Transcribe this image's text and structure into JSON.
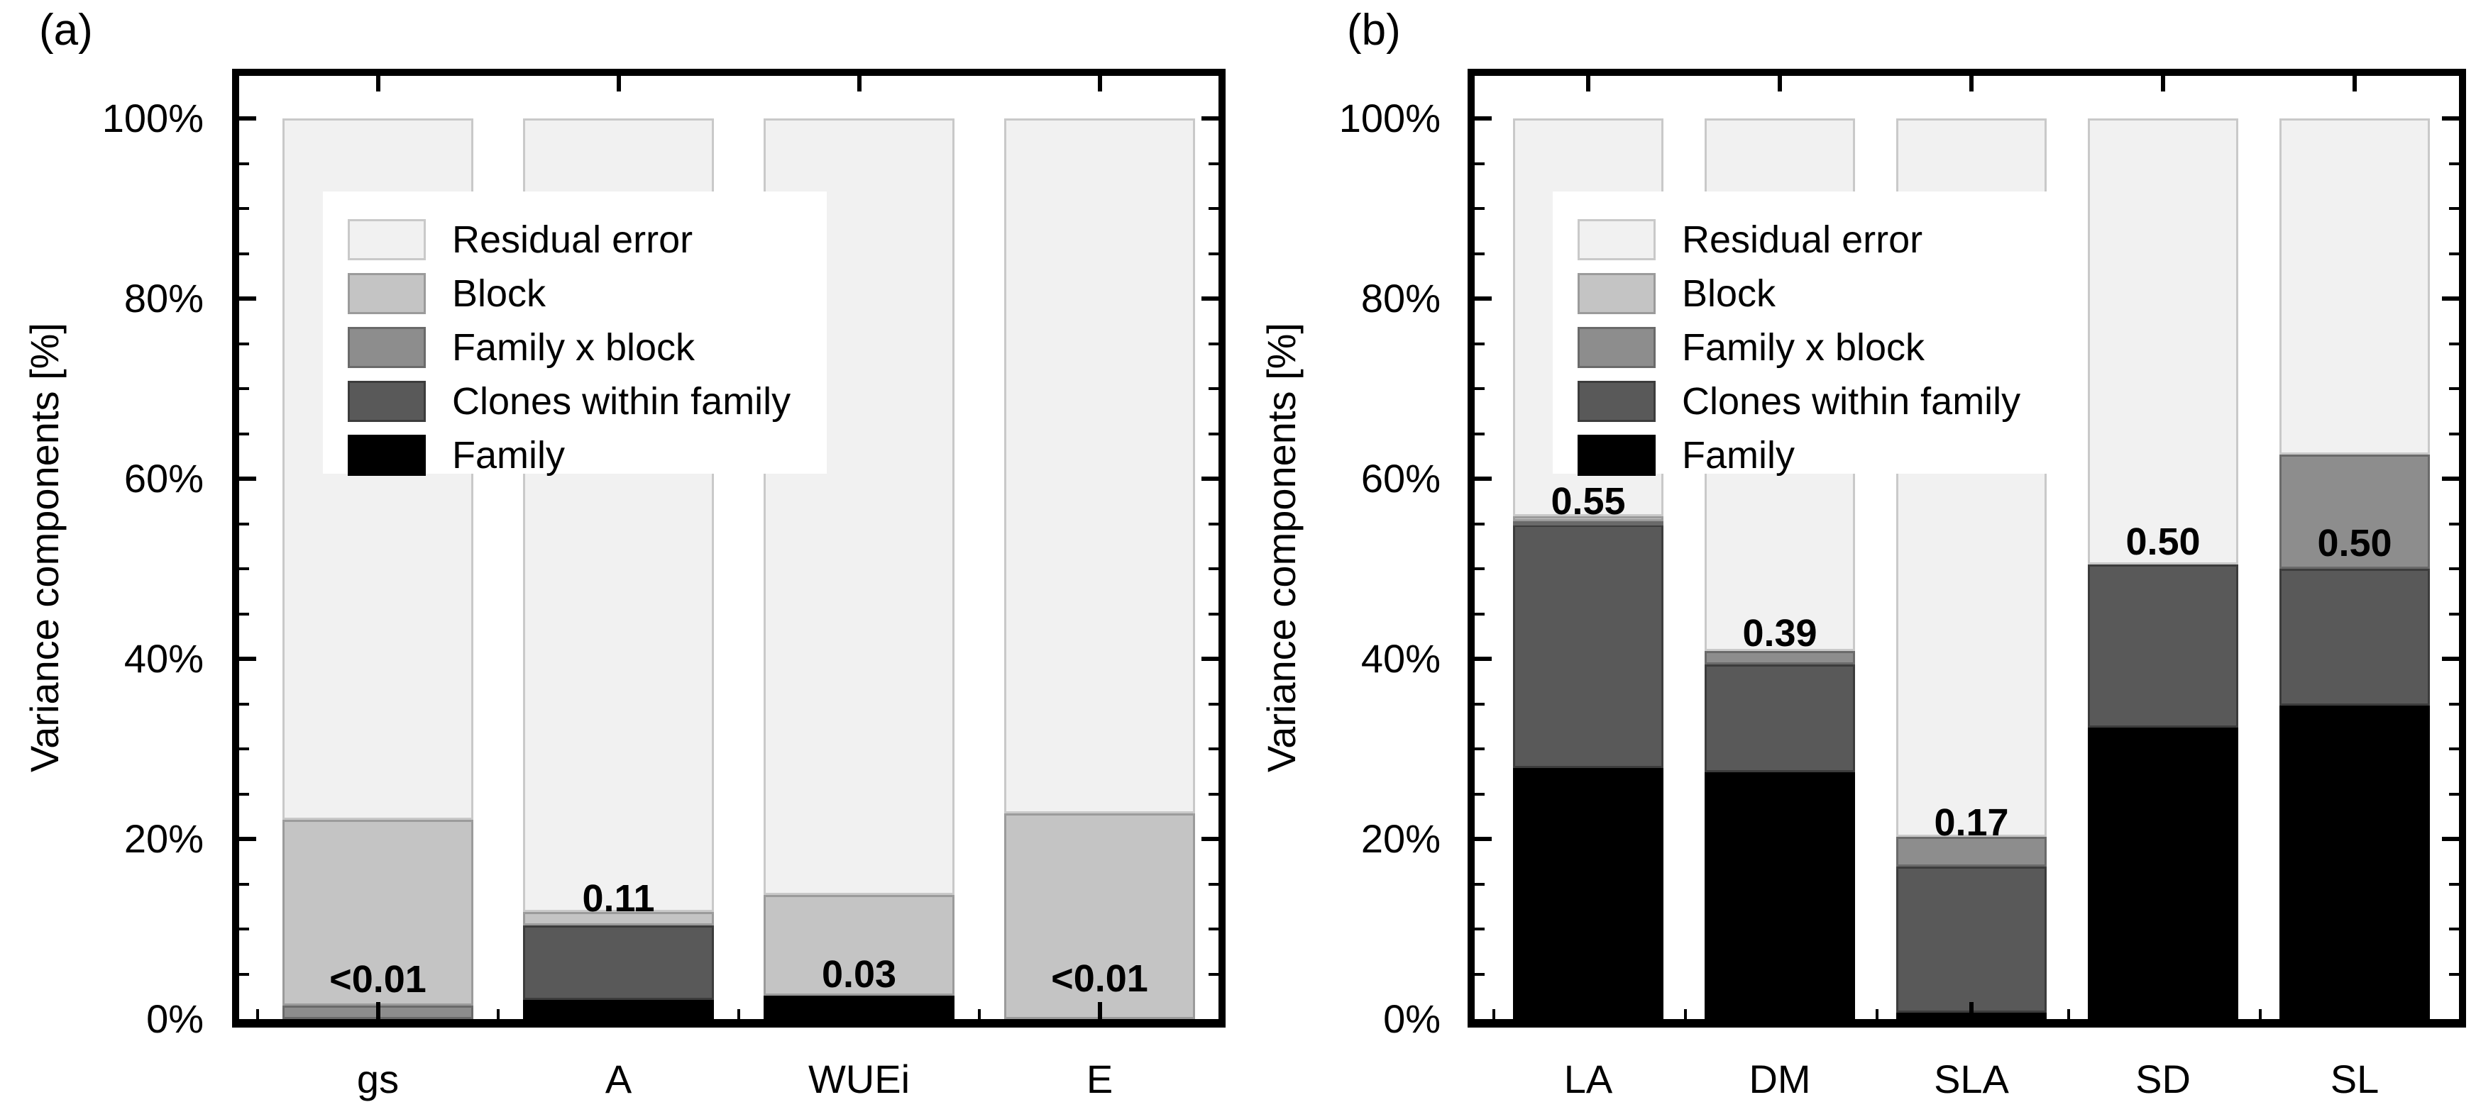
{
  "figure": {
    "background": "#ffffff",
    "axis_color": "#000000",
    "text_color": "#000000"
  },
  "legend": {
    "bg": "#ffffff",
    "entries": [
      {
        "key": "residual",
        "label": "Residual error",
        "fill": "#f1f1f1",
        "border": "#c9c9c9"
      },
      {
        "key": "block",
        "label": "Block",
        "fill": "#c4c4c4",
        "border": "#9b9b9b"
      },
      {
        "key": "famxblock",
        "label": "Family x block",
        "fill": "#8d8d8d",
        "border": "#6a6a6a"
      },
      {
        "key": "clones",
        "label": "Clones within family",
        "fill": "#595959",
        "border": "#3c3c3c"
      },
      {
        "key": "family",
        "label": "Family",
        "fill": "#000000",
        "border": "#000000"
      }
    ]
  },
  "y_axis": {
    "title": "Variance components [%]",
    "tick_labels": [
      "0%",
      "20%",
      "40%",
      "60%",
      "80%",
      "100%"
    ],
    "tick_values": [
      0,
      20,
      40,
      60,
      80,
      100
    ],
    "minor_step": 5,
    "max": 100
  },
  "chart_data": [
    {
      "type": "bar",
      "stacked": true,
      "panel_tag": "(a)",
      "title": "",
      "xlabel": "",
      "ylabel": "Variance components [%]",
      "ylim": [
        0,
        100
      ],
      "grid": false,
      "legend_position": "upper left inside",
      "categories": [
        "gs",
        "A",
        "WUEi",
        "E"
      ],
      "series": [
        {
          "name": "Family",
          "key": "family",
          "values": [
            0,
            2.1,
            2.6,
            0
          ]
        },
        {
          "name": "Clones within family",
          "key": "clones",
          "values": [
            0,
            8.3,
            0,
            0
          ]
        },
        {
          "name": "Family x block",
          "key": "famxblock",
          "values": [
            1.5,
            0,
            0,
            0
          ]
        },
        {
          "name": "Block",
          "key": "block",
          "values": [
            20.6,
            1.5,
            11.2,
            22.8
          ]
        },
        {
          "name": "Residual error",
          "key": "residual",
          "values": [
            77.9,
            88.1,
            86.2,
            77.2
          ]
        }
      ],
      "bar_value_labels": [
        {
          "category": "gs",
          "text": "<0.01",
          "y_percent": 4.4
        },
        {
          "category": "A",
          "text": "0.11",
          "y_percent": 13.4
        },
        {
          "category": "WUEi",
          "text": "0.03",
          "y_percent": 5.0
        },
        {
          "category": "E",
          "text": "<0.01",
          "y_percent": 4.5
        }
      ]
    },
    {
      "type": "bar",
      "stacked": true,
      "panel_tag": "(b)",
      "title": "",
      "xlabel": "",
      "ylabel": "Variance components [%]",
      "ylim": [
        0,
        100
      ],
      "grid": false,
      "legend_position": "upper left inside",
      "categories": [
        "LA",
        "DM",
        "SLA",
        "SD",
        "SL"
      ],
      "series": [
        {
          "name": "Family",
          "key": "family",
          "values": [
            27.9,
            27.4,
            0.7,
            32.4,
            34.8
          ]
        },
        {
          "name": "Clones within family",
          "key": "clones",
          "values": [
            27.0,
            12.0,
            16.2,
            18.1,
            15.2
          ]
        },
        {
          "name": "Family x block",
          "key": "famxblock",
          "values": [
            0.4,
            1.5,
            3.3,
            0,
            12.7
          ]
        },
        {
          "name": "Block",
          "key": "block",
          "values": [
            0.5,
            0,
            0,
            0,
            0
          ]
        },
        {
          "name": "Residual error",
          "key": "residual",
          "values": [
            44.2,
            59.1,
            79.8,
            49.5,
            37.3
          ]
        }
      ],
      "bar_value_labels": [
        {
          "category": "LA",
          "text": "0.55",
          "y_percent": 57.5
        },
        {
          "category": "DM",
          "text": "0.39",
          "y_percent": 42.8
        },
        {
          "category": "SLA",
          "text": "0.17",
          "y_percent": 21.8
        },
        {
          "category": "SD",
          "text": "0.50",
          "y_percent": 53.0
        },
        {
          "category": "SL",
          "text": "0.50",
          "y_percent": 52.8
        }
      ]
    }
  ]
}
